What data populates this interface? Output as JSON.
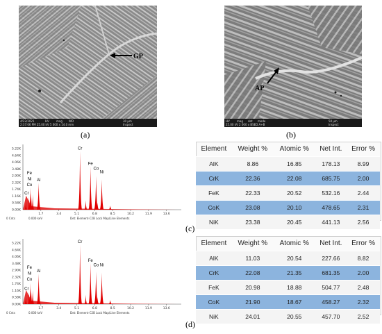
{
  "figure": {
    "panel_a": {
      "label": "(a)",
      "arrow_label": "GP",
      "footer": [
        "4/22/2021",
        "HV",
        "mag",
        "WD",
        "30 µm",
        "2:37:06 PM 25.00 kV 5 000 x 14.0 mm",
        "Inspect"
      ]
    },
    "panel_b": {
      "label": "(b)",
      "arrow_label": "AP",
      "footer": [
        "HV",
        "mag",
        "det",
        "mode",
        "50 µm",
        "25.00 kV 2 000 x BSED A+B",
        "Inspect"
      ]
    },
    "panel_c": {
      "label": "(c)",
      "spectrum": {
        "y_ticks": [
          "5.22K",
          "4.64K",
          "4.06K",
          "3.48K",
          "2.90K",
          "2.32K",
          "1.74K",
          "1.16K",
          "0.58K",
          "0.00K"
        ],
        "x_ticks": [
          "1.7",
          "3.4",
          "5.1",
          "6.8",
          "8.5",
          "10.2",
          "11.9",
          "13.6"
        ],
        "footer_left": "0 Cnts",
        "footer_kev": "0.000 keV",
        "footer_det": "Det: Element-C2B Lock Map/Line Elements",
        "peak_labels": [
          "Cr",
          "Fe",
          "Co",
          "Ni",
          "Fe",
          "Ni",
          "Co",
          "Al",
          "Cr"
        ]
      },
      "table": {
        "headers": [
          "Element",
          "Weight %",
          "Atomic %",
          "Net Int.",
          "Error %"
        ],
        "rows": [
          [
            "AlK",
            "8.86",
            "16.85",
            "178.13",
            "8.99"
          ],
          [
            "CrK",
            "22.36",
            "22.08",
            "685.75",
            "2.00"
          ],
          [
            "FeK",
            "22.33",
            "20.52",
            "532.16",
            "2.44"
          ],
          [
            "CoK",
            "23.08",
            "20.10",
            "478.65",
            "2.31"
          ],
          [
            "NiK",
            "23.38",
            "20.45",
            "441.13",
            "2.56"
          ]
        ]
      }
    },
    "panel_d": {
      "label": "(d)",
      "spectrum": {
        "y_ticks": [
          "5.22K",
          "4.64K",
          "4.06K",
          "3.48K",
          "2.90K",
          "2.32K",
          "1.74K",
          "1.16K",
          "0.58K",
          "0.00K"
        ],
        "x_ticks": [
          "1.7",
          "3.4",
          "5.1",
          "6.8",
          "8.5",
          "10.2",
          "11.9",
          "13.6"
        ],
        "footer_left": "0 Cnts",
        "footer_kev": "0.000 keV",
        "footer_det": "Det: Element-C2B Lock Map/Line Elements",
        "peak_labels": [
          "Cr",
          "Fe",
          "Co",
          "Ni",
          "Fe",
          "Ni",
          "Co",
          "Al",
          "Cr"
        ]
      },
      "table": {
        "headers": [
          "Element",
          "Weight %",
          "Atomic %",
          "Net Int.",
          "Error %"
        ],
        "rows": [
          [
            "AlK",
            "11.03",
            "20.54",
            "227.66",
            "8.82"
          ],
          [
            "CrK",
            "22.08",
            "21.35",
            "681.35",
            "2.00"
          ],
          [
            "FeK",
            "20.98",
            "18.88",
            "504.77",
            "2.48"
          ],
          [
            "CoK",
            "21.90",
            "18.67",
            "458.27",
            "2.32"
          ],
          [
            "NiK",
            "24.01",
            "20.55",
            "457.70",
            "2.52"
          ]
        ]
      }
    }
  },
  "colors": {
    "peak_fill": "#e00000",
    "table_shade": "#8cb4de",
    "table_plain": "#f4f4f4"
  }
}
